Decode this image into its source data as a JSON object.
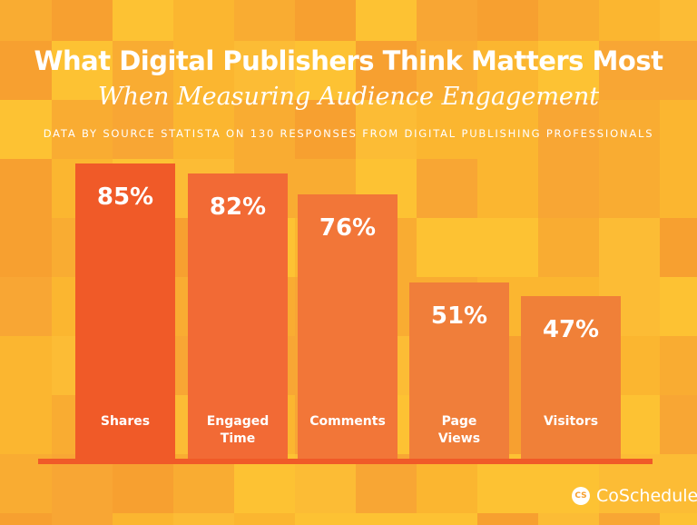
{
  "chart_data": {
    "type": "bar",
    "title": "What Digital Publishers Think Matters Most",
    "subtitle": "When Measuring Audience Engagement",
    "source_note": "DATA BY SOURCE STATISTA ON 130 RESPONSES FROM DIGITAL PUBLISHING PROFESSIONALS",
    "categories": [
      "Shares",
      "Engaged\nTime",
      "Comments",
      "Page\nViews",
      "Visitors"
    ],
    "values": [
      85,
      82,
      76,
      51,
      47
    ],
    "value_labels": [
      "85%",
      "82%",
      "76%",
      "51%",
      "47%"
    ],
    "unit": "%",
    "ylim": [
      0,
      100
    ],
    "grid": false,
    "bar_colors": [
      "#F05A28",
      "#F26A35",
      "#F27638",
      "#F07E3A",
      "#F08038"
    ]
  },
  "brand": {
    "logo_text": "CoSchedule",
    "logo_mark": "CS"
  },
  "colors": {
    "background_light": "#FDC233",
    "background_dark": "#F7A030",
    "axis": "#F05A28"
  }
}
